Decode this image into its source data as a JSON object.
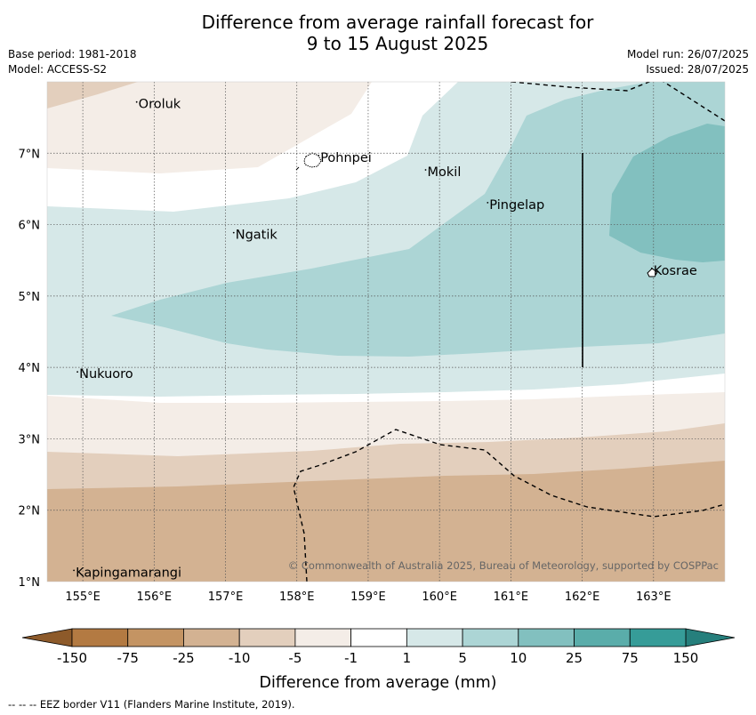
{
  "title": {
    "line1": "Difference from average rainfall forecast for",
    "line2": "9 to 15 August 2025"
  },
  "meta": {
    "base_period": "Base period: 1981-2018",
    "model": "Model: ACCESS-S2",
    "model_run": "Model run: 26/07/2025",
    "issued": "Issued: 28/07/2025"
  },
  "map": {
    "lon_ticks": [
      "155°E",
      "156°E",
      "157°E",
      "158°E",
      "159°E",
      "160°E",
      "161°E",
      "162°E",
      "163°E"
    ],
    "lat_ticks": [
      "7°N",
      "6°N",
      "5°N",
      "4°N",
      "3°N",
      "2°N",
      "1°N"
    ],
    "lon_range": [
      154.5,
      164.0
    ],
    "lat_range": [
      1.0,
      8.0
    ],
    "places": [
      {
        "name": "Oroluk",
        "lon": 155.78,
        "lat": 7.63
      },
      {
        "name": "Pohnpei",
        "lon": 158.33,
        "lat": 6.88
      },
      {
        "name": "Mokil",
        "lon": 159.83,
        "lat": 6.68
      },
      {
        "name": "Pingelap",
        "lon": 160.7,
        "lat": 6.22
      },
      {
        "name": "Ngatik",
        "lon": 157.14,
        "lat": 5.8
      },
      {
        "name": "Kosrae",
        "lon": 163.0,
        "lat": 5.3
      },
      {
        "name": "Nukuoro",
        "lon": 154.95,
        "lat": 3.85
      },
      {
        "name": "Kapingamarangi",
        "lon": 154.9,
        "lat": 1.07
      }
    ],
    "copyright": "© Commonwealth of Australia 2025, Bureau of Meteorology, supported by COSPPac"
  },
  "colorbar": {
    "tick_labels": [
      "-150",
      "-75",
      "-25",
      "-10",
      "-5",
      "-1",
      "1",
      "5",
      "10",
      "25",
      "75",
      "150"
    ],
    "colors": [
      "#b37a42",
      "#c49463",
      "#d3b292",
      "#e3cfbd",
      "#f4ede7",
      "#ffffff",
      "#d6e8e8",
      "#acd5d5",
      "#82c0bf",
      "#5aadaa",
      "#369c98"
    ],
    "extend_low_color": "#8d5a2a",
    "extend_high_color": "#267f7c",
    "label": "Difference from average (mm)"
  },
  "footer": "--  --  -- EEZ border V11 (Flanders Marine Institute, 2019)."
}
